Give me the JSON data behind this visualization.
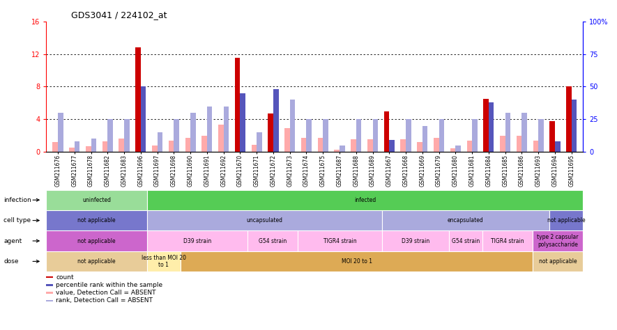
{
  "title": "GDS3041 / 224102_at",
  "samples": [
    "GSM211676",
    "GSM211677",
    "GSM211678",
    "GSM211682",
    "GSM211683",
    "GSM211696",
    "GSM211697",
    "GSM211698",
    "GSM211690",
    "GSM211691",
    "GSM211692",
    "GSM211670",
    "GSM211671",
    "GSM211672",
    "GSM211673",
    "GSM211674",
    "GSM211675",
    "GSM211687",
    "GSM211688",
    "GSM211689",
    "GSM211667",
    "GSM211668",
    "GSM211669",
    "GSM211679",
    "GSM211680",
    "GSM211681",
    "GSM211684",
    "GSM211685",
    "GSM211686",
    "GSM211693",
    "GSM211694",
    "GSM211695"
  ],
  "count_values": [
    1.2,
    0.5,
    0.7,
    1.3,
    1.6,
    12.8,
    0.8,
    1.4,
    1.7,
    2.0,
    3.3,
    11.5,
    0.9,
    4.7,
    2.9,
    1.7,
    1.7,
    0.3,
    1.5,
    1.5,
    5.0,
    1.5,
    1.2,
    1.7,
    0.4,
    1.4,
    6.5,
    2.0,
    2.0,
    1.4,
    3.8,
    8.0
  ],
  "rank_pct": [
    30,
    8,
    10,
    25,
    25,
    50,
    15,
    25,
    30,
    35,
    35,
    45,
    15,
    48,
    40,
    25,
    25,
    5,
    25,
    25,
    9,
    25,
    20,
    25,
    5,
    25,
    38,
    30,
    30,
    25,
    8,
    40
  ],
  "absent_count": [
    true,
    true,
    true,
    true,
    true,
    false,
    true,
    true,
    true,
    true,
    true,
    false,
    true,
    false,
    true,
    true,
    true,
    true,
    true,
    true,
    false,
    true,
    true,
    true,
    true,
    true,
    false,
    true,
    true,
    true,
    false,
    false
  ],
  "absent_rank": [
    true,
    true,
    true,
    true,
    true,
    false,
    true,
    true,
    true,
    true,
    true,
    false,
    true,
    false,
    true,
    true,
    true,
    true,
    true,
    true,
    false,
    true,
    true,
    true,
    true,
    true,
    false,
    true,
    true,
    true,
    false,
    false
  ],
  "ylim_left": [
    0,
    16
  ],
  "ylim_right": [
    0,
    100
  ],
  "yticks_left": [
    0,
    4,
    8,
    12,
    16
  ],
  "yticks_right": [
    0,
    25,
    50,
    75,
    100
  ],
  "color_count_present": "#cc0000",
  "color_count_absent": "#ffaaaa",
  "color_rank_present": "#5555bb",
  "color_rank_absent": "#aaaadd",
  "annotation_rows": [
    {
      "label": "infection",
      "segments": [
        {
          "text": "uninfected",
          "start": 0,
          "end": 5,
          "color": "#99dd99"
        },
        {
          "text": "infected",
          "start": 6,
          "end": 31,
          "color": "#55cc55"
        }
      ]
    },
    {
      "label": "cell type",
      "segments": [
        {
          "text": "not applicable",
          "start": 0,
          "end": 5,
          "color": "#7777cc"
        },
        {
          "text": "uncapsulated",
          "start": 6,
          "end": 19,
          "color": "#aaaadd"
        },
        {
          "text": "encapsulated",
          "start": 20,
          "end": 29,
          "color": "#aaaadd"
        },
        {
          "text": "not applicable",
          "start": 30,
          "end": 31,
          "color": "#7777cc"
        }
      ]
    },
    {
      "label": "agent",
      "segments": [
        {
          "text": "not applicable",
          "start": 0,
          "end": 5,
          "color": "#cc66cc"
        },
        {
          "text": "D39 strain",
          "start": 6,
          "end": 11,
          "color": "#ffbbee"
        },
        {
          "text": "G54 strain",
          "start": 12,
          "end": 14,
          "color": "#ffbbee"
        },
        {
          "text": "TIGR4 strain",
          "start": 15,
          "end": 19,
          "color": "#ffbbee"
        },
        {
          "text": "D39 strain",
          "start": 20,
          "end": 23,
          "color": "#ffbbee"
        },
        {
          "text": "G54 strain",
          "start": 24,
          "end": 25,
          "color": "#ffbbee"
        },
        {
          "text": "TIGR4 strain",
          "start": 26,
          "end": 28,
          "color": "#ffbbee"
        },
        {
          "text": "type 2 capsular\npolysaccharide",
          "start": 29,
          "end": 31,
          "color": "#cc66cc"
        }
      ]
    },
    {
      "label": "dose",
      "segments": [
        {
          "text": "not applicable",
          "start": 0,
          "end": 5,
          "color": "#e8cc99"
        },
        {
          "text": "less than MOI 20\nto 1",
          "start": 6,
          "end": 7,
          "color": "#ffeeaa"
        },
        {
          "text": "MOI 20 to 1",
          "start": 8,
          "end": 28,
          "color": "#ddaa55"
        },
        {
          "text": "not applicable",
          "start": 29,
          "end": 31,
          "color": "#e8cc99"
        }
      ]
    }
  ],
  "legend_items": [
    {
      "label": "count",
      "color": "#cc0000"
    },
    {
      "label": "percentile rank within the sample",
      "color": "#5555bb"
    },
    {
      "label": "value, Detection Call = ABSENT",
      "color": "#ffaaaa"
    },
    {
      "label": "rank, Detection Call = ABSENT",
      "color": "#aaaadd"
    }
  ]
}
